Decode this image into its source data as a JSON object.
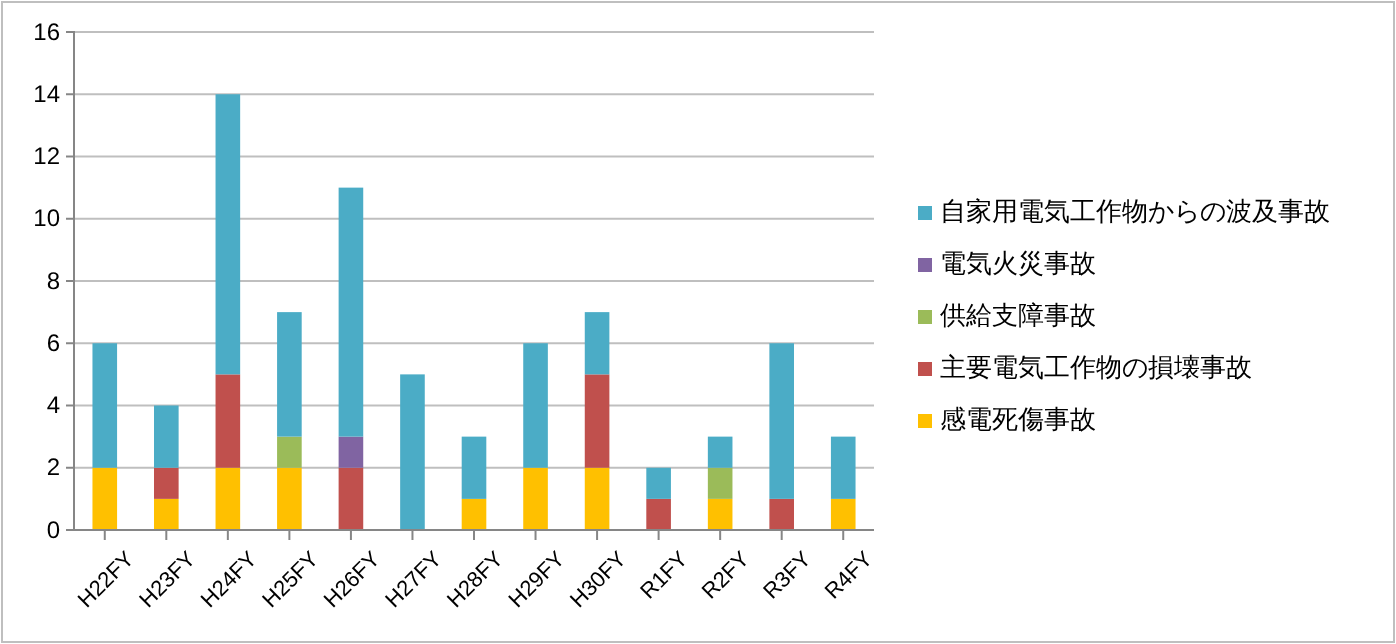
{
  "chart_data": {
    "type": "bar",
    "stacked": true,
    "categories": [
      "H22FY",
      "H23FY",
      "H24FY",
      "H25FY",
      "H26FY",
      "H27FY",
      "H28FY",
      "H29FY",
      "H30FY",
      "R1FY",
      "R2FY",
      "R3FY",
      "R4FY"
    ],
    "series": [
      {
        "name": "感電死傷事故",
        "color": "#ffc000",
        "values": [
          2,
          1,
          2,
          2,
          0,
          0,
          1,
          2,
          2,
          0,
          1,
          0,
          1
        ]
      },
      {
        "name": "主要電気工作物の損壊事故",
        "color": "#c0504d",
        "values": [
          0,
          1,
          3,
          0,
          2,
          0,
          0,
          0,
          3,
          1,
          0,
          1,
          0
        ]
      },
      {
        "name": "供給支障事故",
        "color": "#9bbb59",
        "values": [
          0,
          0,
          0,
          1,
          0,
          0,
          0,
          0,
          0,
          0,
          1,
          0,
          0
        ]
      },
      {
        "name": "電気火災事故",
        "color": "#8064a2",
        "values": [
          0,
          0,
          0,
          0,
          1,
          0,
          0,
          0,
          0,
          0,
          0,
          0,
          0
        ]
      },
      {
        "name": "自家用電気工作物からの波及事故",
        "color": "#4bacc6",
        "values": [
          4,
          2,
          9,
          4,
          8,
          5,
          2,
          4,
          2,
          1,
          1,
          5,
          2
        ]
      }
    ],
    "ylim": [
      0,
      16
    ],
    "yticks": [
      0,
      2,
      4,
      6,
      8,
      10,
      12,
      14,
      16
    ],
    "grid": "y",
    "legend": "right"
  }
}
